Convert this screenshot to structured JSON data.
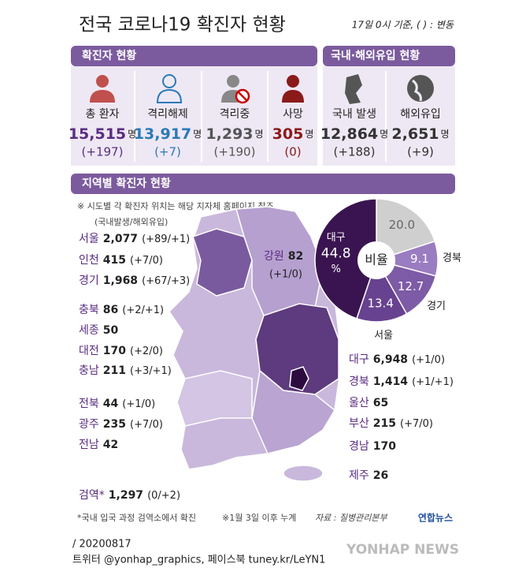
{
  "header": {
    "title": "전국 코로나19 확진자 현황",
    "note": "17일 0시 기준, ( ) : 변동"
  },
  "confirmed": {
    "title": "확진자 현황",
    "items": [
      {
        "label": "총 환자",
        "value": "15,515",
        "unit": "명",
        "change": "(+197)",
        "color": "#5a2d82"
      },
      {
        "label": "격리해제",
        "value": "13,917",
        "unit": "명",
        "change": "(+7)",
        "color": "#2a7ab8"
      },
      {
        "label": "격리중",
        "value": "1,293",
        "unit": "명",
        "change": "(+190)",
        "color": "#555555"
      },
      {
        "label": "사망",
        "value": "305",
        "unit": "명",
        "change": "(0)",
        "color": "#8b1a1a"
      }
    ]
  },
  "origin": {
    "title": "국내·해외유입 현황",
    "items": [
      {
        "label": "국내 발생",
        "value": "12,864",
        "unit": "명",
        "change": "(+188)",
        "color": "#333333"
      },
      {
        "label": "해외유입",
        "value": "2,651",
        "unit": "명",
        "change": "(+9)",
        "color": "#333333"
      }
    ]
  },
  "regional": {
    "title": "지역별 확진자 현황",
    "note": "※ 시도별 각 확진자 위치는 해당 지자체 홈페이지 참조",
    "legend": "(국내발생/해외유입)",
    "regions": [
      {
        "name": "서울",
        "value": "2,077",
        "change": "(+89/+1)"
      },
      {
        "name": "인천",
        "value": "415",
        "change": "(+7/0)"
      },
      {
        "name": "경기",
        "value": "1,968",
        "change": "(+67/+3)"
      },
      {
        "name": "강원",
        "value": "82",
        "change": "(+1/0)"
      },
      {
        "name": "충북",
        "value": "86",
        "change": "(+2/+1)"
      },
      {
        "name": "세종",
        "value": "50"
      },
      {
        "name": "대전",
        "value": "170",
        "change": "(+2/0)"
      },
      {
        "name": "충남",
        "value": "211",
        "change": "(+3/+1)"
      },
      {
        "name": "대구",
        "value": "6,948",
        "change": "(+1/0)"
      },
      {
        "name": "경북",
        "value": "1,414",
        "change": "(+1/+1)"
      },
      {
        "name": "울산",
        "value": "65"
      },
      {
        "name": "부산",
        "value": "215",
        "change": "(+7/0)"
      },
      {
        "name": "경남",
        "value": "170"
      },
      {
        "name": "전북",
        "value": "44",
        "change": "(+1/0)"
      },
      {
        "name": "광주",
        "value": "235",
        "change": "(+7/0)"
      },
      {
        "name": "전남",
        "value": "42"
      },
      {
        "name": "제주",
        "value": "26"
      },
      {
        "name": "검역*",
        "value": "1,297",
        "change": "(0/+2)"
      }
    ]
  },
  "pie": {
    "center_label": "비율",
    "unit": "%",
    "slices": [
      {
        "value": 20,
        "label": "20.0",
        "color": "#cfcfcf"
      },
      {
        "name": "경북",
        "value": 9.1,
        "color": "#9a7cc0"
      },
      {
        "name": "경기",
        "value": 12.7,
        "color": "#7d5ba6"
      },
      {
        "name": "서울",
        "value": 13.4,
        "color": "#674290"
      },
      {
        "name": "대구",
        "value": 44.8,
        "color": "#3a1450"
      }
    ]
  },
  "footnotes": [
    "*국내 입국 과정 검역소에서 확진",
    "※1월 3일 이후 누계",
    "자료 : 질병관리본부",
    "연합뉴스"
  ],
  "credits": {
    "date": "/ 20200817",
    "social": "트위터 @yonhap_graphics, 페이스북 tuney.kr/LeYN1",
    "watermark": "YONHAP NEWS"
  }
}
